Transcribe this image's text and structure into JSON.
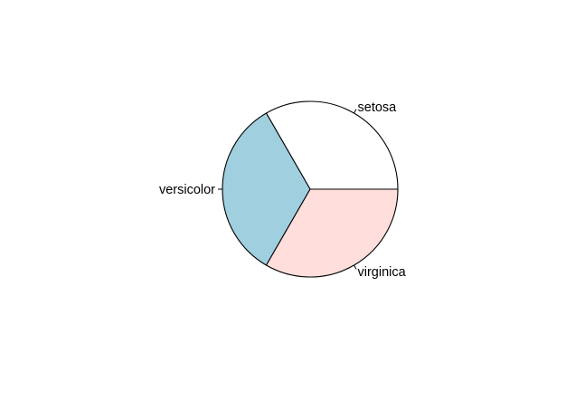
{
  "chart_data": {
    "type": "pie",
    "title": "",
    "categories": [
      "setosa",
      "versicolor",
      "virginica"
    ],
    "values": [
      50,
      50,
      50
    ],
    "colors": [
      "#FFFFFF",
      "#A0D0E0",
      "#FFDEDB"
    ],
    "start_angle_deg": 0,
    "direction": "counterclockwise",
    "legend": "none",
    "labels_outside": true
  }
}
